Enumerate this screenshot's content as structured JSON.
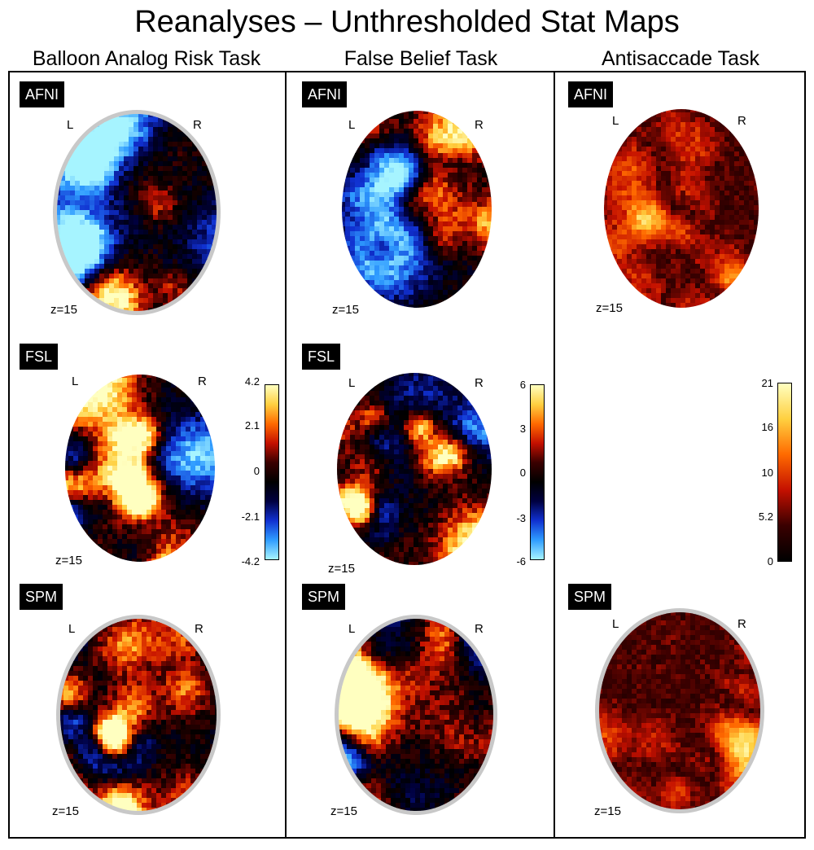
{
  "title": "Reanalyses – Unthresholded Stat Maps",
  "columns": [
    {
      "title": "Balloon Analog Risk Task"
    },
    {
      "title": "False Belief Task"
    },
    {
      "title": "Antisaccade Task"
    }
  ],
  "labels": {
    "afni": "AFNI",
    "fsl": "FSL",
    "spm": "SPM",
    "left": "L",
    "right": "R",
    "slice": "z=15"
  },
  "colorbars": [
    {
      "ticks": [
        "4.2",
        "2.1",
        "0",
        "-2.1",
        "-4.2"
      ]
    },
    {
      "ticks": [
        "6",
        "3",
        "0",
        "-3",
        "-6"
      ]
    },
    {
      "ticks": [
        "21",
        "16",
        "10",
        "5.2",
        "0"
      ]
    }
  ],
  "colors": {
    "negative_cmap": [
      "#a6f4ff",
      "#2f9cff",
      "#1030d0",
      "#000040"
    ],
    "positive_cmap": [
      "#3a0000",
      "#c41000",
      "#ff6a00",
      "#ffd040",
      "#ffffc0"
    ],
    "skull": "#c8c8c8"
  }
}
